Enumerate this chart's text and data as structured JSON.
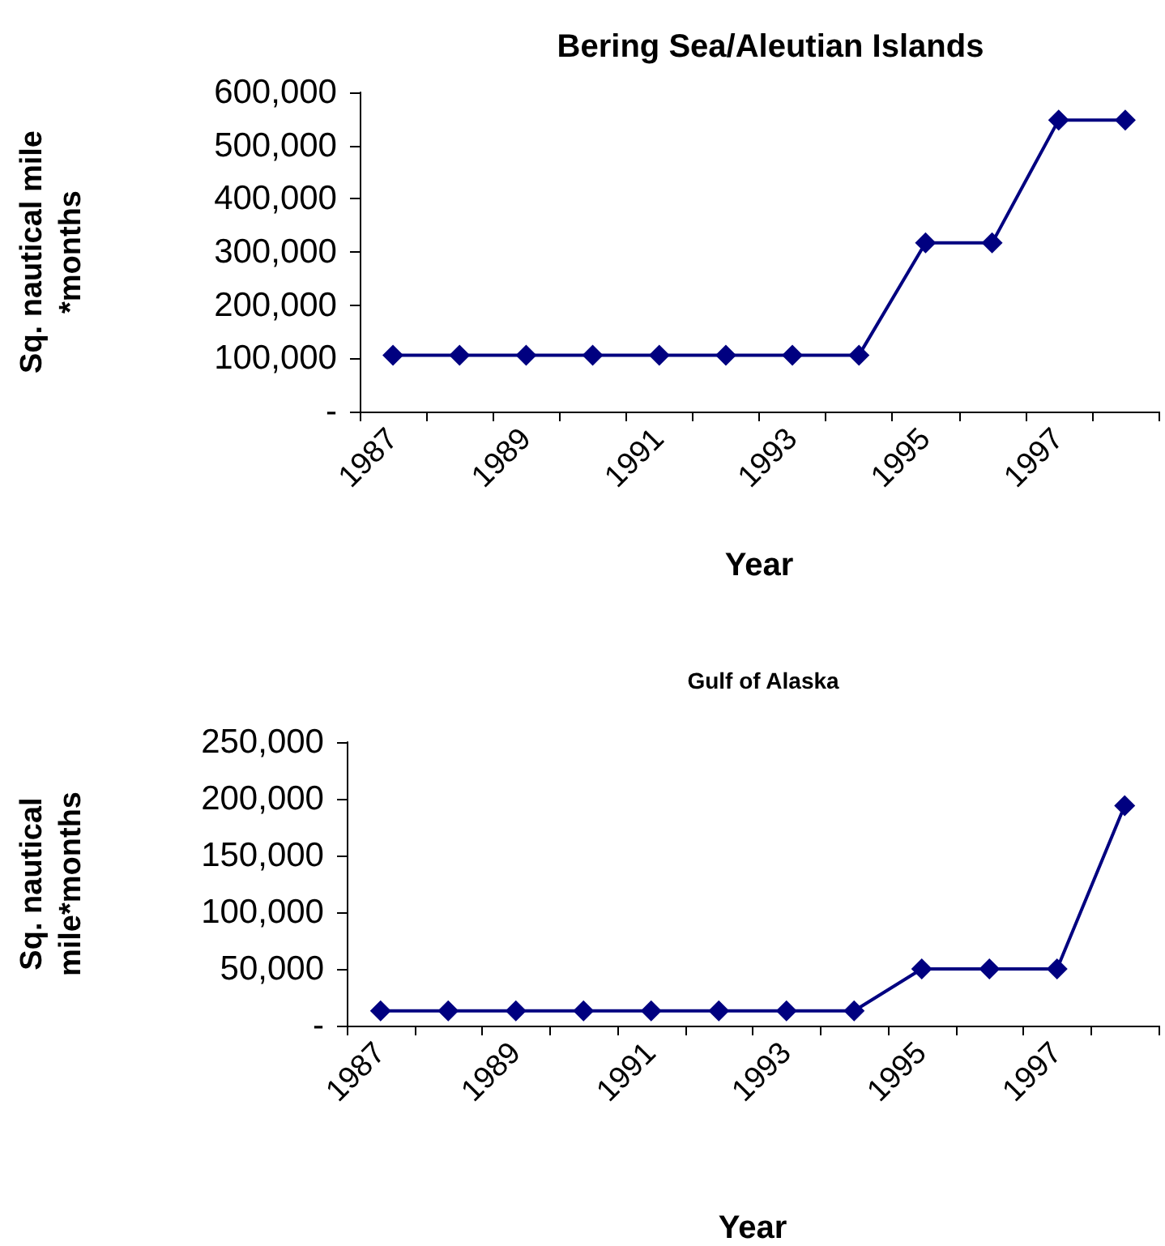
{
  "chart_data": [
    {
      "type": "line",
      "title": "Bering Sea/Aleutian Islands",
      "xlabel": "Year",
      "ylabel": "Sq. nautical mile *months",
      "categories": [
        "1987",
        null,
        "1989",
        null,
        "1991",
        null,
        "1993",
        null,
        "1995",
        null,
        "1997",
        null
      ],
      "series": [
        {
          "color": "#000080",
          "values": [
            106000,
            106000,
            106000,
            106000,
            106000,
            106000,
            106000,
            106000,
            317000,
            317000,
            548000,
            548000
          ]
        }
      ],
      "ylim": [
        0,
        600000
      ],
      "yticks": [
        {
          "value": 0,
          "label": "-"
        },
        {
          "value": 100000,
          "label": "100,000"
        },
        {
          "value": 200000,
          "label": "200,000"
        },
        {
          "value": 300000,
          "label": "300,000"
        },
        {
          "value": 400000,
          "label": "400,000"
        },
        {
          "value": 500000,
          "label": "500,000"
        },
        {
          "value": 600000,
          "label": "600,000"
        }
      ],
      "grid": false,
      "marker": "diamond",
      "line_style": "solid"
    },
    {
      "type": "line",
      "title": "Gulf of Alaska",
      "xlabel": "Year",
      "ylabel": "Sq. nautical mile*months",
      "categories": [
        "1987",
        null,
        "1989",
        null,
        "1991",
        null,
        "1993",
        null,
        "1995",
        null,
        "1997",
        null
      ],
      "series": [
        {
          "color": "#000080",
          "values": [
            13000,
            13000,
            13000,
            13000,
            13000,
            13000,
            13000,
            13000,
            50000,
            50000,
            50000,
            194000
          ]
        }
      ],
      "ylim": [
        0,
        250000
      ],
      "yticks": [
        {
          "value": 0,
          "label": "-"
        },
        {
          "value": 50000,
          "label": "50,000"
        },
        {
          "value": 100000,
          "label": "100,000"
        },
        {
          "value": 150000,
          "label": "150,000"
        },
        {
          "value": 200000,
          "label": "200,000"
        },
        {
          "value": 250000,
          "label": "250,000"
        }
      ],
      "grid": false,
      "marker": "diamond",
      "line_style": "solid"
    }
  ]
}
